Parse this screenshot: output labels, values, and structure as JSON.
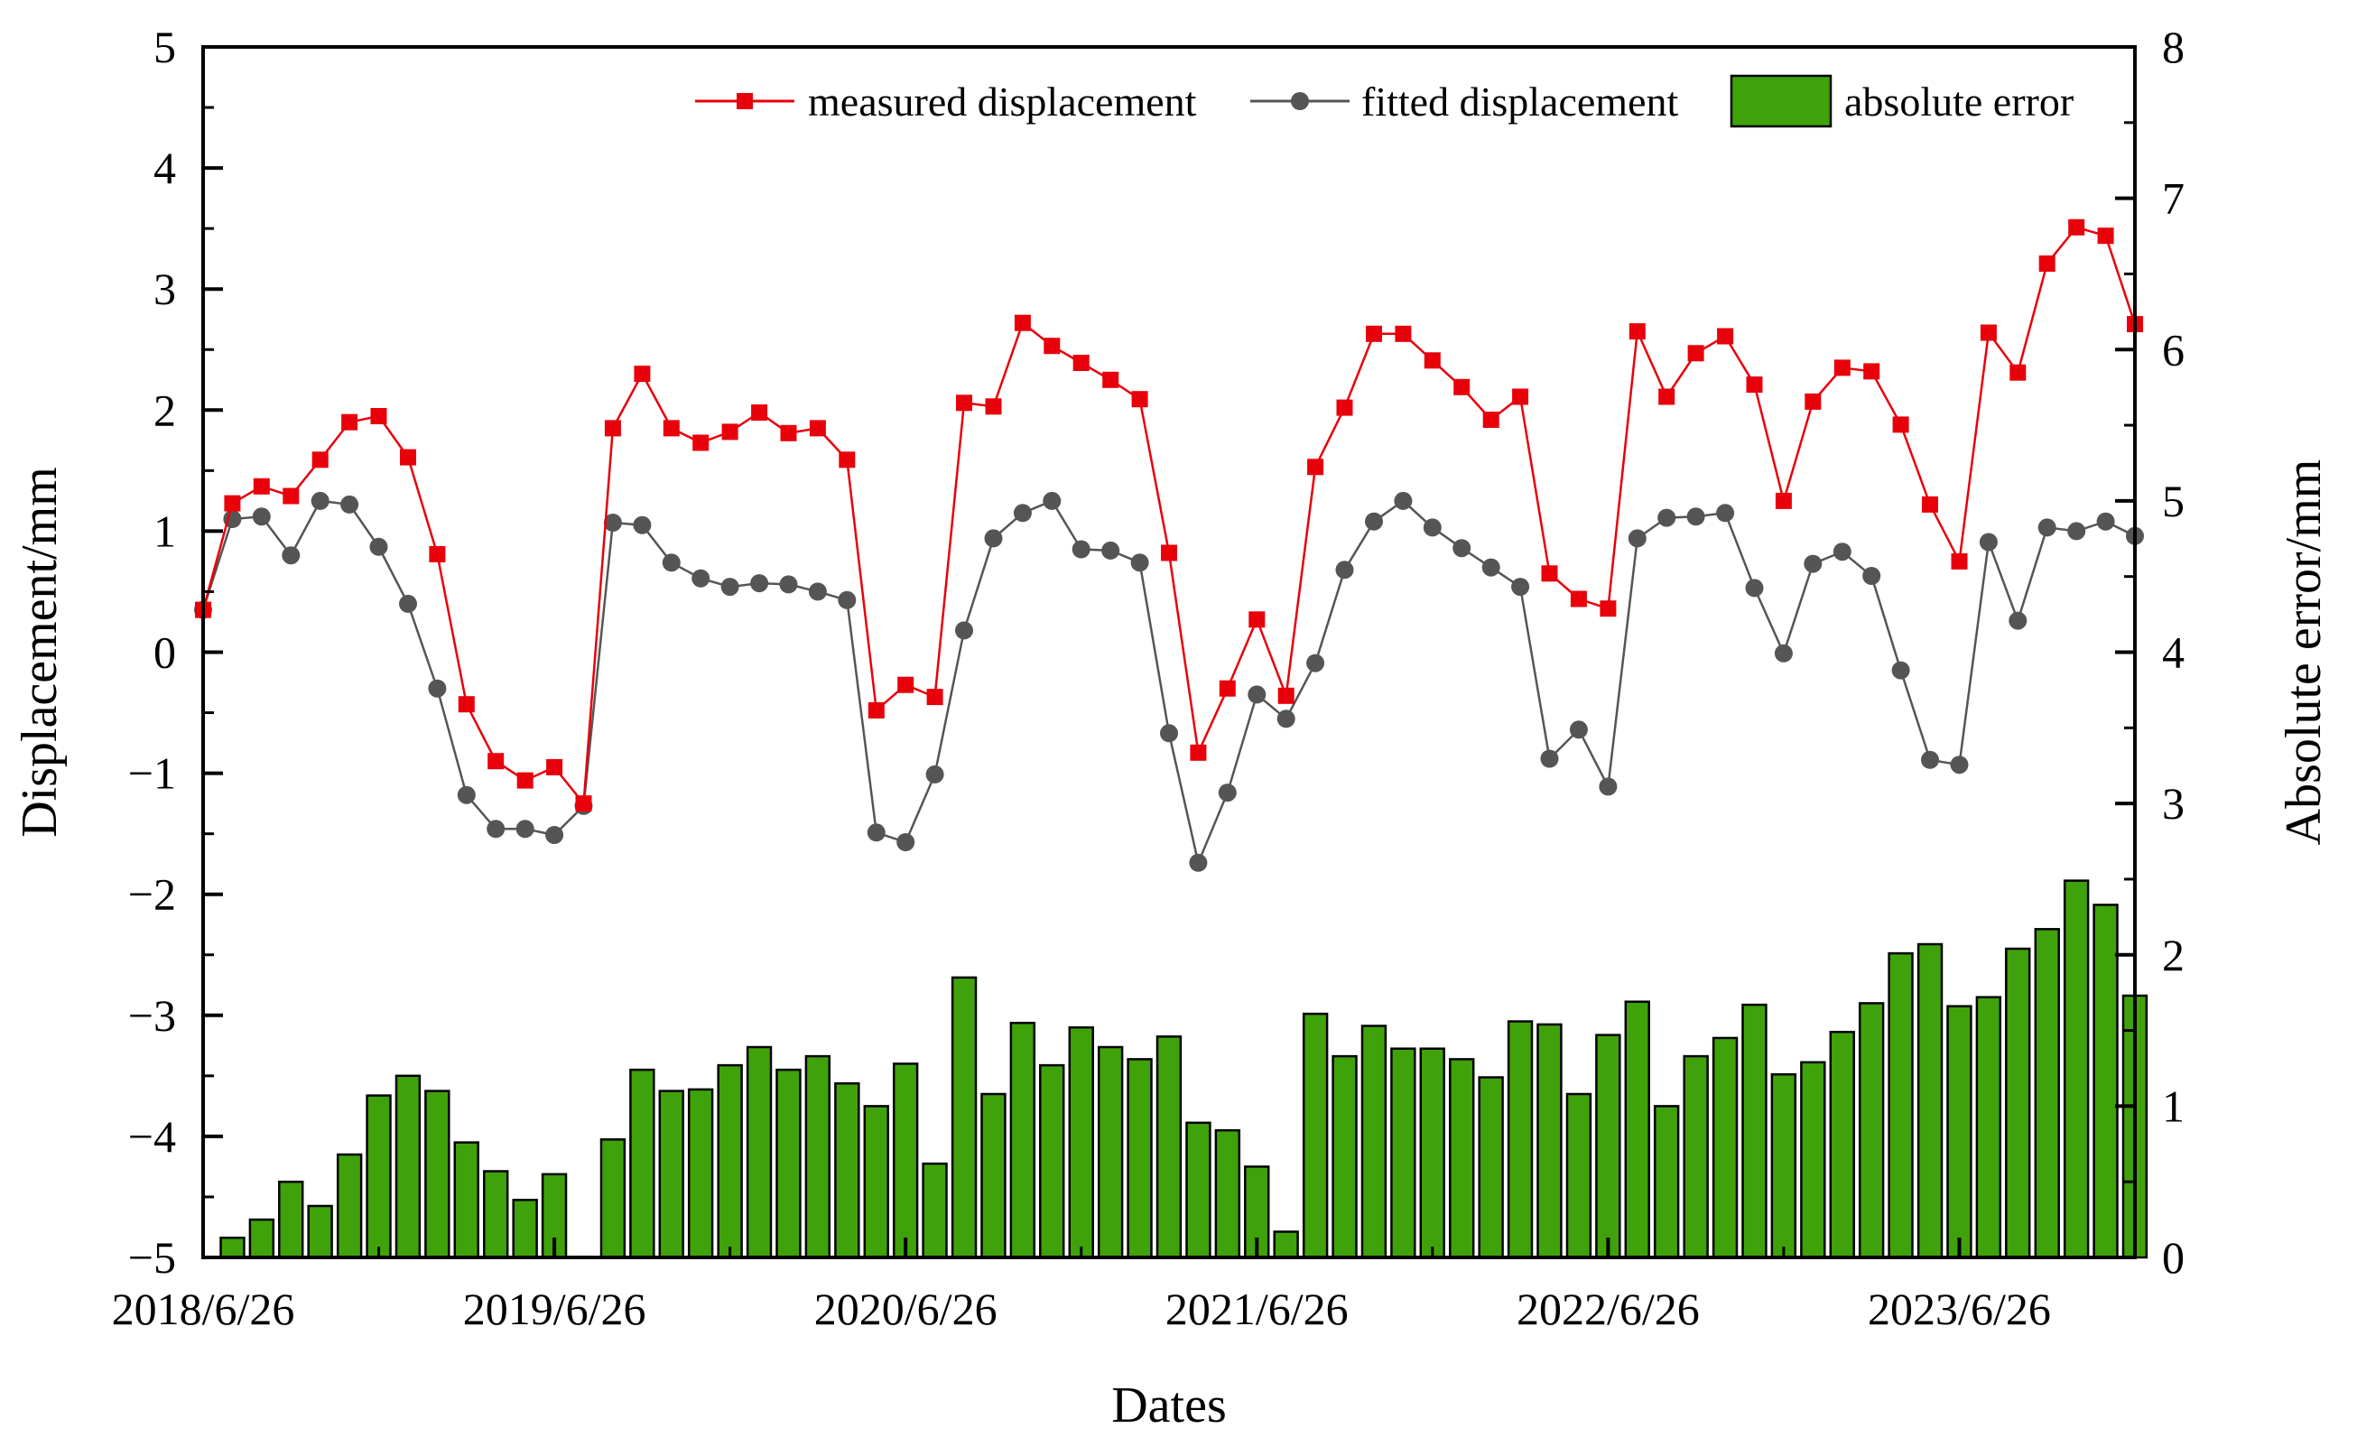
{
  "chart_data": {
    "type": "line+bar",
    "xlabel": "Dates",
    "ylabel_left": "Displacement/mm",
    "ylabel_right": "Absolute error/mm",
    "ylim_left": [
      -5,
      5
    ],
    "ylim_right": [
      0,
      8
    ],
    "x_tick_labels": [
      "2018/6/26",
      "2019/6/26",
      "2020/6/26",
      "2021/6/26",
      "2022/6/26",
      "2023/6/26"
    ],
    "y_left_tick_labels": [
      "5",
      "4",
      "3",
      "2",
      "1",
      "0",
      "−1",
      "−2",
      "−3",
      "−4",
      "−5"
    ],
    "y_left_tick_values": [
      5,
      4,
      3,
      2,
      1,
      0,
      -1,
      -2,
      -3,
      -4,
      -5
    ],
    "y_right_tick_labels": [
      "8",
      "7",
      "6",
      "5",
      "4",
      "3",
      "2",
      "1",
      "0"
    ],
    "y_right_tick_values": [
      8,
      7,
      6,
      5,
      4,
      3,
      2,
      1,
      0
    ],
    "legend": {
      "position": "top-right",
      "measured_label": "measured displacement",
      "fitted_label": "fitted displacement",
      "error_label": "absolute error"
    },
    "colors": {
      "measured": "#e8000b",
      "fitted": "#555555",
      "error_fill": "#3fa20a",
      "error_stroke": "#000000"
    },
    "series": [
      {
        "name": "measured displacement",
        "values": [
          0.35,
          1.23,
          1.37,
          1.29,
          1.59,
          1.9,
          1.95,
          1.61,
          0.81,
          -0.43,
          -0.9,
          -1.06,
          -0.95,
          -1.25,
          1.85,
          2.3,
          1.85,
          1.73,
          1.82,
          1.98,
          1.81,
          1.85,
          1.59,
          -0.48,
          -0.27,
          -0.37,
          2.06,
          2.03,
          2.72,
          2.53,
          2.39,
          2.25,
          2.09,
          0.82,
          -0.83,
          -0.3,
          0.27,
          -0.36,
          1.53,
          2.02,
          2.63,
          2.63,
          2.41,
          2.19,
          1.92,
          2.11,
          0.65,
          0.44,
          0.36,
          2.65,
          2.11,
          2.47,
          2.61,
          2.21,
          1.25,
          2.07,
          2.35,
          2.32,
          1.88,
          1.22,
          0.75,
          2.64,
          2.31,
          3.21,
          3.51,
          3.44,
          2.71
        ]
      },
      {
        "name": "fitted displacement",
        "values": [
          0.35,
          1.1,
          1.12,
          0.8,
          1.25,
          1.22,
          0.87,
          0.4,
          -0.3,
          -1.18,
          -1.46,
          -1.46,
          -1.51,
          -1.27,
          1.07,
          1.05,
          0.74,
          0.61,
          0.54,
          0.57,
          0.56,
          0.5,
          0.43,
          -1.49,
          -1.57,
          -1.01,
          0.18,
          0.94,
          1.15,
          1.25,
          0.85,
          0.84,
          0.74,
          -0.67,
          -1.74,
          -1.16,
          -0.35,
          -0.55,
          -0.09,
          0.68,
          1.08,
          1.25,
          1.03,
          0.86,
          0.7,
          0.54,
          -0.88,
          -0.64,
          -1.11,
          0.94,
          1.11,
          1.12,
          1.15,
          0.53,
          -0.01,
          0.73,
          0.83,
          0.63,
          -0.15,
          -0.89,
          -0.93,
          0.91,
          0.26,
          1.03,
          1.0,
          1.08,
          0.96
        ]
      },
      {
        "name": "absolute error",
        "values": [
          0.13,
          0.25,
          0.5,
          0.34,
          0.68,
          1.07,
          1.2,
          1.1,
          0.76,
          0.57,
          0.38,
          0.55,
          0.0,
          0.78,
          1.24,
          1.1,
          1.11,
          1.27,
          1.39,
          1.24,
          1.33,
          1.15,
          1.0,
          1.28,
          0.62,
          1.85,
          1.08,
          1.55,
          1.27,
          1.52,
          1.39,
          1.31,
          1.46,
          0.89,
          0.84,
          0.6,
          0.17,
          1.61,
          1.33,
          1.53,
          1.38,
          1.38,
          1.31,
          1.19,
          1.56,
          1.54,
          1.08,
          1.47,
          1.69,
          1.0,
          1.33,
          1.45,
          1.67,
          1.21,
          1.29,
          1.49,
          1.68,
          2.01,
          2.07,
          1.66,
          1.72,
          2.04,
          2.17,
          2.49,
          2.33,
          1.73
        ]
      }
    ]
  }
}
